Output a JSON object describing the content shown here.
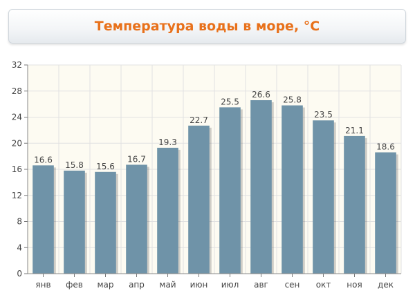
{
  "chart_data": {
    "type": "bar",
    "title": "Температура воды в море, °С",
    "categories": [
      "янв",
      "фев",
      "мар",
      "апр",
      "май",
      "июн",
      "июл",
      "авг",
      "сен",
      "окт",
      "ноя",
      "дек"
    ],
    "values": [
      16.6,
      15.8,
      15.6,
      16.7,
      19.3,
      22.7,
      25.5,
      26.6,
      25.8,
      23.5,
      21.1,
      18.6
    ],
    "value_labels": [
      "16.6",
      "15.8",
      "15.6",
      "16.7",
      "19.3",
      "22.7",
      "25.5",
      "26.6",
      "25.8",
      "23.5",
      "21.1",
      "18.6"
    ],
    "y_ticks": [
      "0",
      "4",
      "8",
      "12",
      "16",
      "20",
      "24",
      "28",
      "32"
    ],
    "ylim": [
      0,
      32
    ],
    "xlabel": "",
    "ylabel": "",
    "grid": true,
    "colors": {
      "bar": "#6f93a8",
      "plot_bg": "#fdfbf2",
      "grid": "#e1e1e1",
      "title": "#e8711b",
      "text": "#444444"
    }
  }
}
